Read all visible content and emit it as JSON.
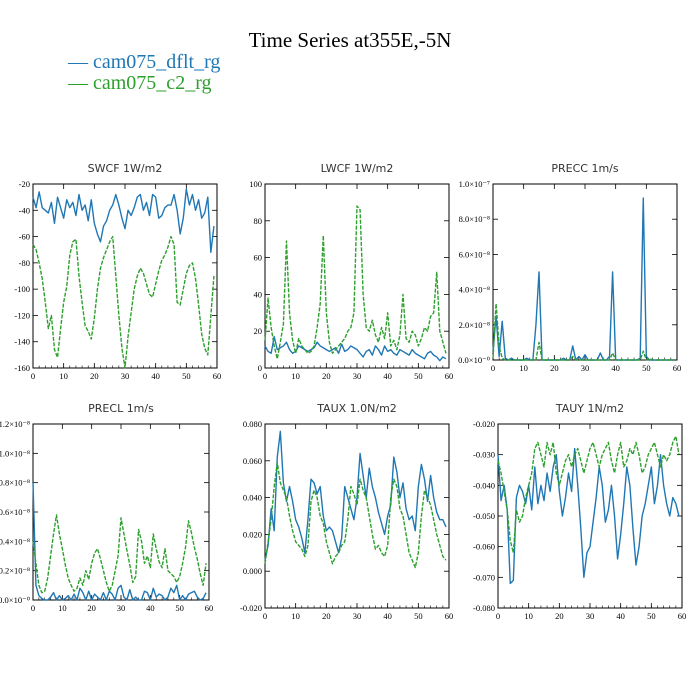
{
  "figure_title": "Time Series at355E,-5N",
  "legend": [
    {
      "label": "— cam075_dflt_rg",
      "color": "#1f77b4"
    },
    {
      "label": "— cam075_c2_rg",
      "color": "#2ca02c"
    }
  ],
  "chart_data": [
    {
      "type": "line",
      "title": "SWCF   1W/m2",
      "xlim": [
        0,
        60
      ],
      "ylim": [
        -160,
        -20
      ],
      "xticks": [
        "0",
        "10",
        "20",
        "30",
        "40",
        "50",
        "60"
      ],
      "yticks": [
        "-20",
        "-40",
        "-60",
        "-80",
        "-100",
        "-120",
        "-140",
        "-160"
      ],
      "series": [
        {
          "name": "cam075_dflt_rg",
          "color": "#1f77b4",
          "values": [
            -30,
            -38,
            -26,
            -38,
            -40,
            -42,
            -34,
            -50,
            -30,
            -38,
            -46,
            -32,
            -38,
            -34,
            -44,
            -28,
            -40,
            -36,
            -48,
            -32,
            -50,
            -58,
            -64,
            -52,
            -48,
            -40,
            -36,
            -28,
            -36,
            -46,
            -54,
            -40,
            -44,
            -38,
            -30,
            -28,
            -40,
            -34,
            -44,
            -28,
            -30,
            -46,
            -44,
            -38,
            -36,
            -36,
            -28,
            -40,
            -58,
            -46,
            -24,
            -36,
            -28,
            -40,
            -32,
            -46,
            -42,
            -30,
            -72,
            -52
          ]
        },
        {
          "name": "cam075_c2_rg",
          "color": "#2ca02c",
          "dashed": true,
          "values": [
            -66,
            -70,
            -80,
            -92,
            -110,
            -130,
            -120,
            -146,
            -152,
            -130,
            -110,
            -98,
            -74,
            -64,
            -62,
            -90,
            -110,
            -128,
            -132,
            -138,
            -122,
            -100,
            -84,
            -76,
            -70,
            -64,
            -60,
            -90,
            -120,
            -145,
            -160,
            -136,
            -118,
            -100,
            -90,
            -84,
            -88,
            -96,
            -104,
            -106,
            -96,
            -86,
            -78,
            -74,
            -68,
            -60,
            -66,
            -110,
            -112,
            -100,
            -88,
            -82,
            -80,
            -92,
            -112,
            -134,
            -145,
            -150,
            -120,
            -90
          ]
        }
      ]
    },
    {
      "type": "line",
      "title": "LWCF   1W/m2",
      "xlim": [
        0,
        60
      ],
      "ylim": [
        0,
        100
      ],
      "xticks": [
        "0",
        "10",
        "20",
        "30",
        "40",
        "50",
        "60"
      ],
      "yticks": [
        "0",
        "20",
        "40",
        "60",
        "80",
        "100"
      ],
      "series": [
        {
          "name": "cam075_dflt_rg",
          "color": "#1f77b4",
          "values": [
            12,
            9,
            8,
            17,
            10,
            11,
            12,
            14,
            10,
            8,
            9,
            12,
            11,
            10,
            9,
            10,
            11,
            14,
            12,
            11,
            10,
            9,
            10,
            11,
            8,
            13,
            9,
            10,
            12,
            11,
            10,
            8,
            6,
            9,
            10,
            7,
            12,
            10,
            7,
            12,
            9,
            10,
            8,
            7,
            10,
            9,
            8,
            7,
            10,
            8,
            7,
            6,
            5,
            8,
            9,
            7,
            6,
            4,
            6,
            5
          ]
        },
        {
          "name": "cam075_c2_rg",
          "color": "#2ca02c",
          "dashed": true,
          "values": [
            15,
            38,
            22,
            12,
            5,
            14,
            24,
            69,
            30,
            15,
            8,
            16,
            12,
            10,
            8,
            9,
            12,
            22,
            35,
            72,
            30,
            14,
            8,
            10,
            12,
            14,
            16,
            20,
            22,
            30,
            88,
            86,
            40,
            22,
            20,
            26,
            18,
            14,
            22,
            16,
            30,
            12,
            15,
            10,
            18,
            40,
            16,
            14,
            20,
            18,
            12,
            16,
            22,
            20,
            28,
            30,
            52,
            20,
            14,
            8
          ]
        }
      ]
    },
    {
      "type": "line",
      "title": "PRECC   1m/s",
      "xlim": [
        0,
        60
      ],
      "ylim": [
        0,
        1e-07
      ],
      "xticks": [
        "0",
        "10",
        "20",
        "30",
        "40",
        "50",
        "60"
      ],
      "yticks": [
        "0.0×10⁻⁰",
        "2.0×10⁻⁸",
        "4.0×10⁻⁸",
        "6.0×10⁻⁸",
        "8.0×10⁻⁸",
        "1.0×10⁻⁷"
      ],
      "series": [
        {
          "name": "cam075_dflt_rg",
          "color": "#1f77b4",
          "values": [
            5e-09,
            2.5e-08,
            2e-09,
            2.2e-08,
            1e-09,
            0,
            1e-09,
            0,
            0,
            0,
            0,
            1e-09,
            0,
            0,
            2e-08,
            5e-08,
            0,
            0,
            0,
            0,
            0,
            0,
            0,
            1e-09,
            0,
            0,
            8e-09,
            0,
            2e-09,
            0,
            3e-09,
            0,
            0,
            0,
            0,
            4e-09,
            0,
            0,
            2e-09,
            5e-08,
            0,
            0,
            0,
            0,
            0,
            0,
            0,
            0,
            1e-09,
            9.2e-08,
            2e-09,
            0,
            0,
            0,
            0,
            0,
            0,
            0,
            0,
            0
          ]
        },
        {
          "name": "cam075_c2_rg",
          "color": "#2ca02c",
          "dashed": true,
          "values": [
            1e-09,
            3.2e-08,
            8e-09,
            1e-09,
            0,
            0,
            0,
            0,
            0,
            0,
            0,
            0,
            0,
            0,
            0,
            1e-08,
            0,
            0,
            0,
            0,
            0,
            0,
            0,
            0,
            0,
            0,
            2e-09,
            0,
            0,
            0,
            0,
            0,
            0,
            0,
            0,
            0,
            0,
            0,
            0,
            4e-09,
            0,
            0,
            0,
            0,
            0,
            0,
            0,
            0,
            0,
            5e-09,
            0,
            1e-09,
            0,
            0,
            0,
            0,
            0,
            0,
            0,
            0
          ]
        }
      ]
    },
    {
      "type": "line",
      "title": "PRECL   1m/s",
      "xlim": [
        0,
        60
      ],
      "ylim": [
        0,
        1.2e-08
      ],
      "xticks": [
        "0",
        "10",
        "20",
        "30",
        "40",
        "50",
        "60"
      ],
      "yticks": [
        "0.0×10⁻⁰",
        "0.2×10⁻⁸",
        "0.4×10⁻⁸",
        "0.6×10⁻⁸",
        "0.8×10⁻⁸",
        "1.0×10⁻⁸",
        "1.2×10⁻⁸"
      ],
      "series": [
        {
          "name": "cam075_dflt_rg",
          "color": "#1f77b4",
          "values": [
            8e-09,
            1e-09,
            3e-10,
            1e-10,
            0,
            0,
            2e-10,
            5e-10,
            0,
            3e-10,
            0,
            1e-10,
            3e-10,
            0,
            4e-10,
            0,
            8e-10,
            5e-10,
            0,
            6e-10,
            0,
            4e-10,
            2e-10,
            0,
            5e-10,
            0,
            6e-10,
            4e-10,
            0,
            8e-10,
            1e-09,
            2e-10,
            0,
            7e-10,
            0,
            2e-10,
            0,
            0,
            6e-10,
            5e-10,
            0,
            8e-10,
            2e-10,
            4e-10,
            3e-10,
            0,
            2e-10,
            8e-10,
            5e-10,
            1e-09,
            0,
            3e-10,
            0,
            4e-10,
            5e-10,
            6e-10,
            2e-10,
            0,
            1e-10,
            5e-10
          ]
        },
        {
          "name": "cam075_c2_rg",
          "color": "#2ca02c",
          "dashed": true,
          "values": [
            4e-09,
            2.5e-09,
            1e-09,
            5e-10,
            6e-10,
            1.5e-09,
            3e-09,
            4.5e-09,
            5.8e-09,
            4.5e-09,
            3.5e-09,
            2.4e-09,
            1.5e-09,
            1e-09,
            6e-10,
            8e-10,
            1.5e-09,
            1e-09,
            2e-09,
            1.4e-09,
            2.5e-09,
            3.2e-09,
            3.5e-09,
            2.8e-09,
            2e-09,
            1.2e-09,
            6e-10,
            1e-09,
            2e-09,
            3e-09,
            5.6e-09,
            4.5e-09,
            3.4e-09,
            2.4e-09,
            1.2e-09,
            1.6e-09,
            4.8e-09,
            4e-09,
            2.5e-09,
            3e-09,
            2.2e-09,
            4.5e-09,
            3.5e-09,
            2.6e-09,
            2.2e-09,
            3.5e-09,
            2e-09,
            1.8e-09,
            1.6e-09,
            1.2e-09,
            1.6e-09,
            2.5e-09,
            3.6e-09,
            5.4e-09,
            4.6e-09,
            3.6e-09,
            2.8e-09,
            1.8e-09,
            1e-09,
            2.5e-09
          ]
        }
      ]
    },
    {
      "type": "line",
      "title": "TAUX   1.0N/m2",
      "xlim": [
        0,
        60
      ],
      "ylim": [
        -0.02,
        0.08
      ],
      "xticks": [
        "0",
        "10",
        "20",
        "30",
        "40",
        "50",
        "60"
      ],
      "yticks": [
        "-0.020",
        "0.000",
        "0.020",
        "0.040",
        "0.060",
        "0.080"
      ],
      "series": [
        {
          "name": "cam075_dflt_rg",
          "color": "#1f77b4",
          "values": [
            0.006,
            0.014,
            0.034,
            0.022,
            0.062,
            0.076,
            0.048,
            0.038,
            0.046,
            0.038,
            0.028,
            0.024,
            0.018,
            0.01,
            0.028,
            0.05,
            0.048,
            0.042,
            0.046,
            0.03,
            0.022,
            0.024,
            0.022,
            0.016,
            0.01,
            0.018,
            0.046,
            0.04,
            0.034,
            0.028,
            0.04,
            0.064,
            0.052,
            0.04,
            0.056,
            0.046,
            0.04,
            0.032,
            0.026,
            0.02,
            0.03,
            0.036,
            0.062,
            0.054,
            0.04,
            0.048,
            0.034,
            0.028,
            0.03,
            0.022,
            0.046,
            0.058,
            0.05,
            0.038,
            0.052,
            0.04,
            0.032,
            0.028,
            0.028,
            0.024
          ]
        },
        {
          "name": "cam075_c2_rg",
          "color": "#2ca02c",
          "dashed": true,
          "values": [
            0.004,
            0.016,
            0.028,
            0.046,
            0.059,
            0.048,
            0.044,
            0.04,
            0.03,
            0.022,
            0.016,
            0.014,
            0.012,
            0.008,
            0.014,
            0.038,
            0.044,
            0.04,
            0.03,
            0.026,
            0.016,
            0.01,
            0.004,
            0.008,
            0.01,
            0.014,
            0.016,
            0.028,
            0.046,
            0.042,
            0.036,
            0.05,
            0.044,
            0.04,
            0.03,
            0.02,
            0.012,
            0.014,
            0.01,
            0.008,
            0.014,
            0.04,
            0.05,
            0.046,
            0.034,
            0.03,
            0.02,
            0.01,
            0.006,
            0.002,
            0.01,
            0.03,
            0.044,
            0.04,
            0.036,
            0.028,
            0.02,
            0.014,
            0.008,
            0.006
          ]
        }
      ]
    },
    {
      "type": "line",
      "title": "TAUY   1N/m2",
      "xlim": [
        0,
        60
      ],
      "ylim": [
        -0.08,
        -0.02
      ],
      "xticks": [
        "0",
        "10",
        "20",
        "30",
        "40",
        "50",
        "60"
      ],
      "yticks": [
        "-0.020",
        "-0.030",
        "-0.040",
        "-0.050",
        "-0.060",
        "-0.070",
        "-0.080"
      ],
      "series": [
        {
          "name": "cam075_dflt_rg",
          "color": "#1f77b4",
          "values": [
            -0.03,
            -0.045,
            -0.04,
            -0.048,
            -0.072,
            -0.071,
            -0.044,
            -0.04,
            -0.042,
            -0.046,
            -0.04,
            -0.048,
            -0.034,
            -0.046,
            -0.04,
            -0.045,
            -0.036,
            -0.042,
            -0.034,
            -0.03,
            -0.042,
            -0.05,
            -0.044,
            -0.036,
            -0.042,
            -0.028,
            -0.04,
            -0.054,
            -0.07,
            -0.062,
            -0.06,
            -0.052,
            -0.044,
            -0.034,
            -0.04,
            -0.052,
            -0.048,
            -0.04,
            -0.05,
            -0.064,
            -0.056,
            -0.046,
            -0.034,
            -0.04,
            -0.054,
            -0.066,
            -0.06,
            -0.05,
            -0.046,
            -0.04,
            -0.034,
            -0.046,
            -0.04,
            -0.03,
            -0.04,
            -0.046,
            -0.05,
            -0.044,
            -0.046,
            -0.05
          ]
        },
        {
          "name": "cam075_c2_rg",
          "color": "#2ca02c",
          "dashed": true,
          "values": [
            -0.032,
            -0.036,
            -0.042,
            -0.048,
            -0.058,
            -0.062,
            -0.048,
            -0.052,
            -0.05,
            -0.044,
            -0.04,
            -0.036,
            -0.028,
            -0.026,
            -0.03,
            -0.034,
            -0.026,
            -0.03,
            -0.026,
            -0.036,
            -0.04,
            -0.036,
            -0.032,
            -0.03,
            -0.034,
            -0.03,
            -0.028,
            -0.032,
            -0.036,
            -0.032,
            -0.028,
            -0.026,
            -0.03,
            -0.034,
            -0.03,
            -0.028,
            -0.026,
            -0.032,
            -0.036,
            -0.03,
            -0.026,
            -0.034,
            -0.032,
            -0.028,
            -0.03,
            -0.026,
            -0.03,
            -0.036,
            -0.034,
            -0.03,
            -0.028,
            -0.026,
            -0.03,
            -0.034,
            -0.03,
            -0.032,
            -0.03,
            -0.026,
            -0.024,
            -0.03
          ]
        }
      ]
    }
  ]
}
